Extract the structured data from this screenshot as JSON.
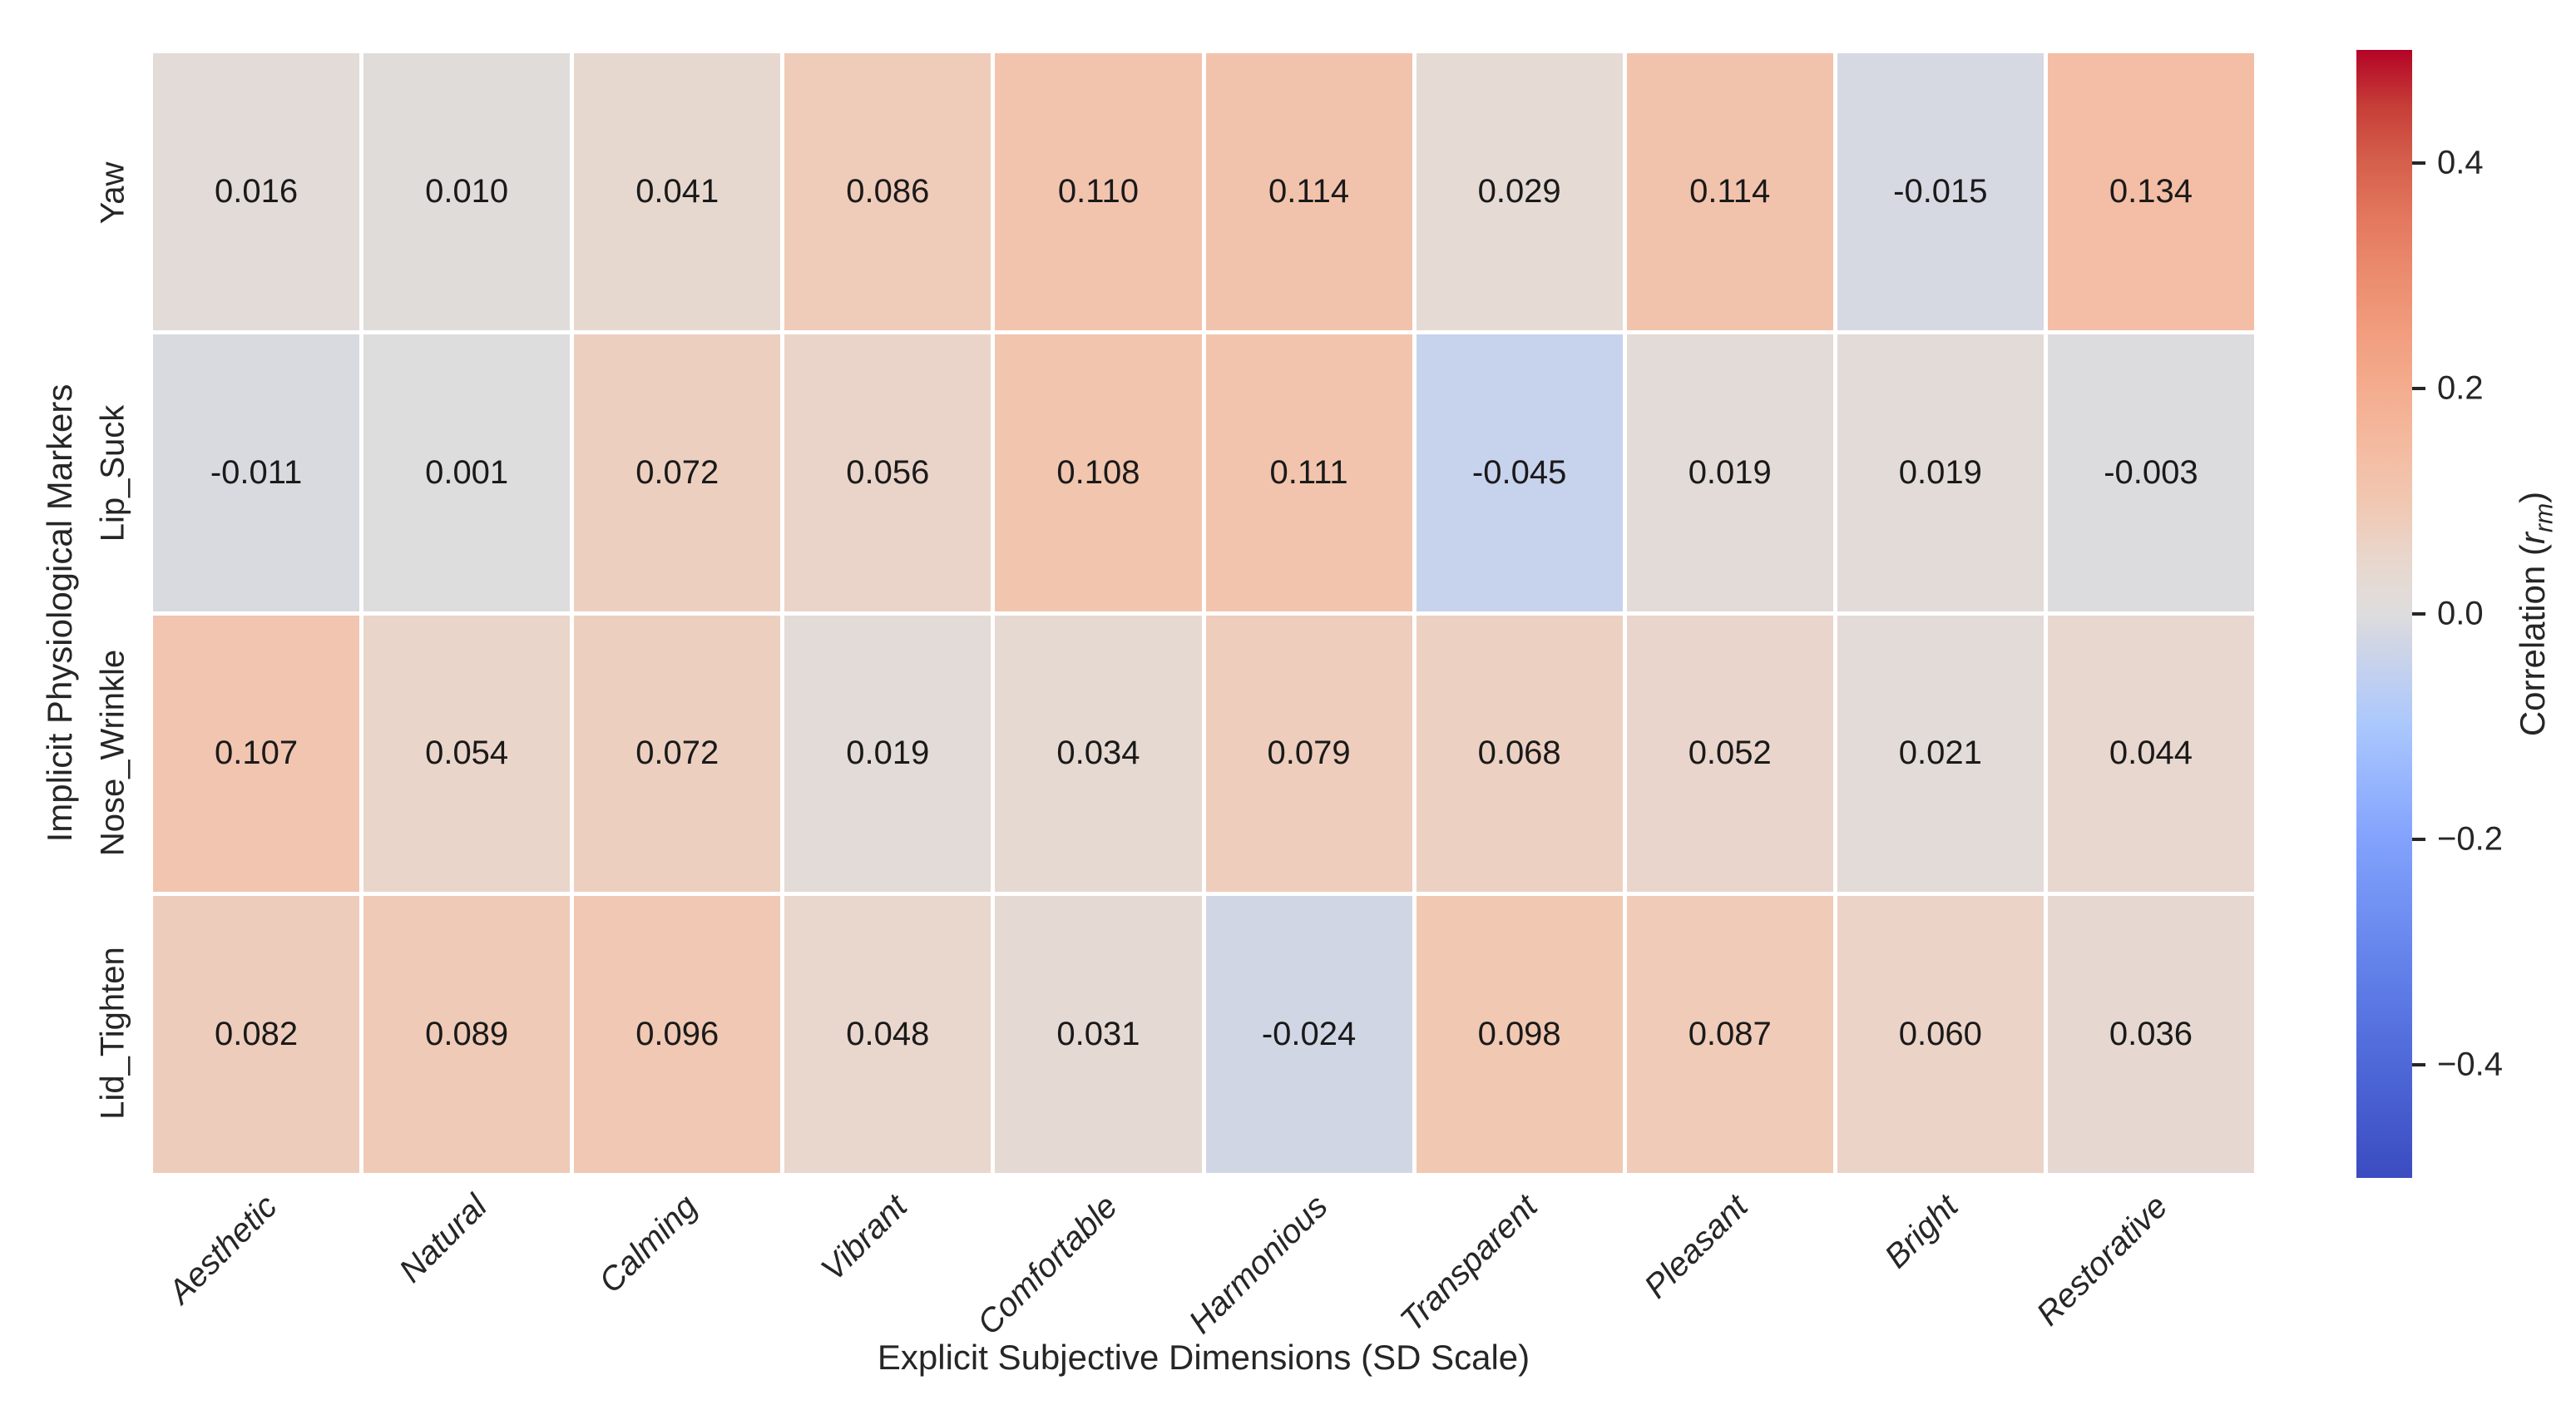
{
  "chart_data": {
    "type": "heatmap",
    "title": "",
    "x_axis_label": "Explicit Subjective Dimensions (SD Scale)",
    "y_axis_label": "Implicit Physiological Markers",
    "x_categories": [
      "Aesthetic",
      "Natural",
      "Calming",
      "Vibrant",
      "Comfortable",
      "Harmonious",
      "Transparent",
      "Pleasant",
      "Bright",
      "Restorative"
    ],
    "y_categories": [
      "Yaw",
      "Lip_Suck",
      "Nose_Wrinkle",
      "Lid_Tighten"
    ],
    "values": [
      [
        0.016,
        0.01,
        0.041,
        0.086,
        0.11,
        0.114,
        0.029,
        0.114,
        -0.015,
        0.134
      ],
      [
        -0.011,
        0.001,
        0.072,
        0.056,
        0.108,
        0.111,
        -0.045,
        0.019,
        0.019,
        -0.003
      ],
      [
        0.107,
        0.054,
        0.072,
        0.019,
        0.034,
        0.079,
        0.068,
        0.052,
        0.021,
        0.044
      ],
      [
        0.082,
        0.089,
        0.096,
        0.048,
        0.031,
        -0.024,
        0.098,
        0.087,
        0.06,
        0.036
      ]
    ],
    "value_decimals": 3,
    "vmin": -0.5,
    "vmax": 0.5,
    "grid_line_color": "#ffffff",
    "colorbar": {
      "label_prefix": "Correlation (",
      "label_var": "r",
      "label_sub": "rm",
      "label_suffix": ")",
      "ticks": [
        0.4,
        0.2,
        0.0,
        -0.2,
        -0.4
      ],
      "tick_decimals": 1
    },
    "colormap": {
      "name": "coolwarm",
      "anchors": [
        [
          0.0,
          "#3B4CC0"
        ],
        [
          0.1,
          "#4E68D8"
        ],
        [
          0.2,
          "#6585EC"
        ],
        [
          0.3,
          "#82A2FD"
        ],
        [
          0.4,
          "#AAC7FD"
        ],
        [
          0.45,
          "#C4D1EE"
        ],
        [
          0.48,
          "#D3D7E3"
        ],
        [
          0.5,
          "#DDDDDD"
        ],
        [
          0.52,
          "#E3DBD7"
        ],
        [
          0.55,
          "#E9D6CC"
        ],
        [
          0.6,
          "#F1C7B1"
        ],
        [
          0.65,
          "#F4BAA0"
        ],
        [
          0.7,
          "#F4AC8E"
        ],
        [
          0.75,
          "#F19D7E"
        ],
        [
          0.8,
          "#EB8C6E"
        ],
        [
          0.85,
          "#E3785E"
        ],
        [
          0.9,
          "#D5604C"
        ],
        [
          0.95,
          "#C63E38"
        ],
        [
          1.0,
          "#B40426"
        ]
      ]
    },
    "colors": {
      "figure_background": "#ffffff",
      "annotation_text": "#1a1a1a",
      "axis_text": "#262626"
    }
  }
}
